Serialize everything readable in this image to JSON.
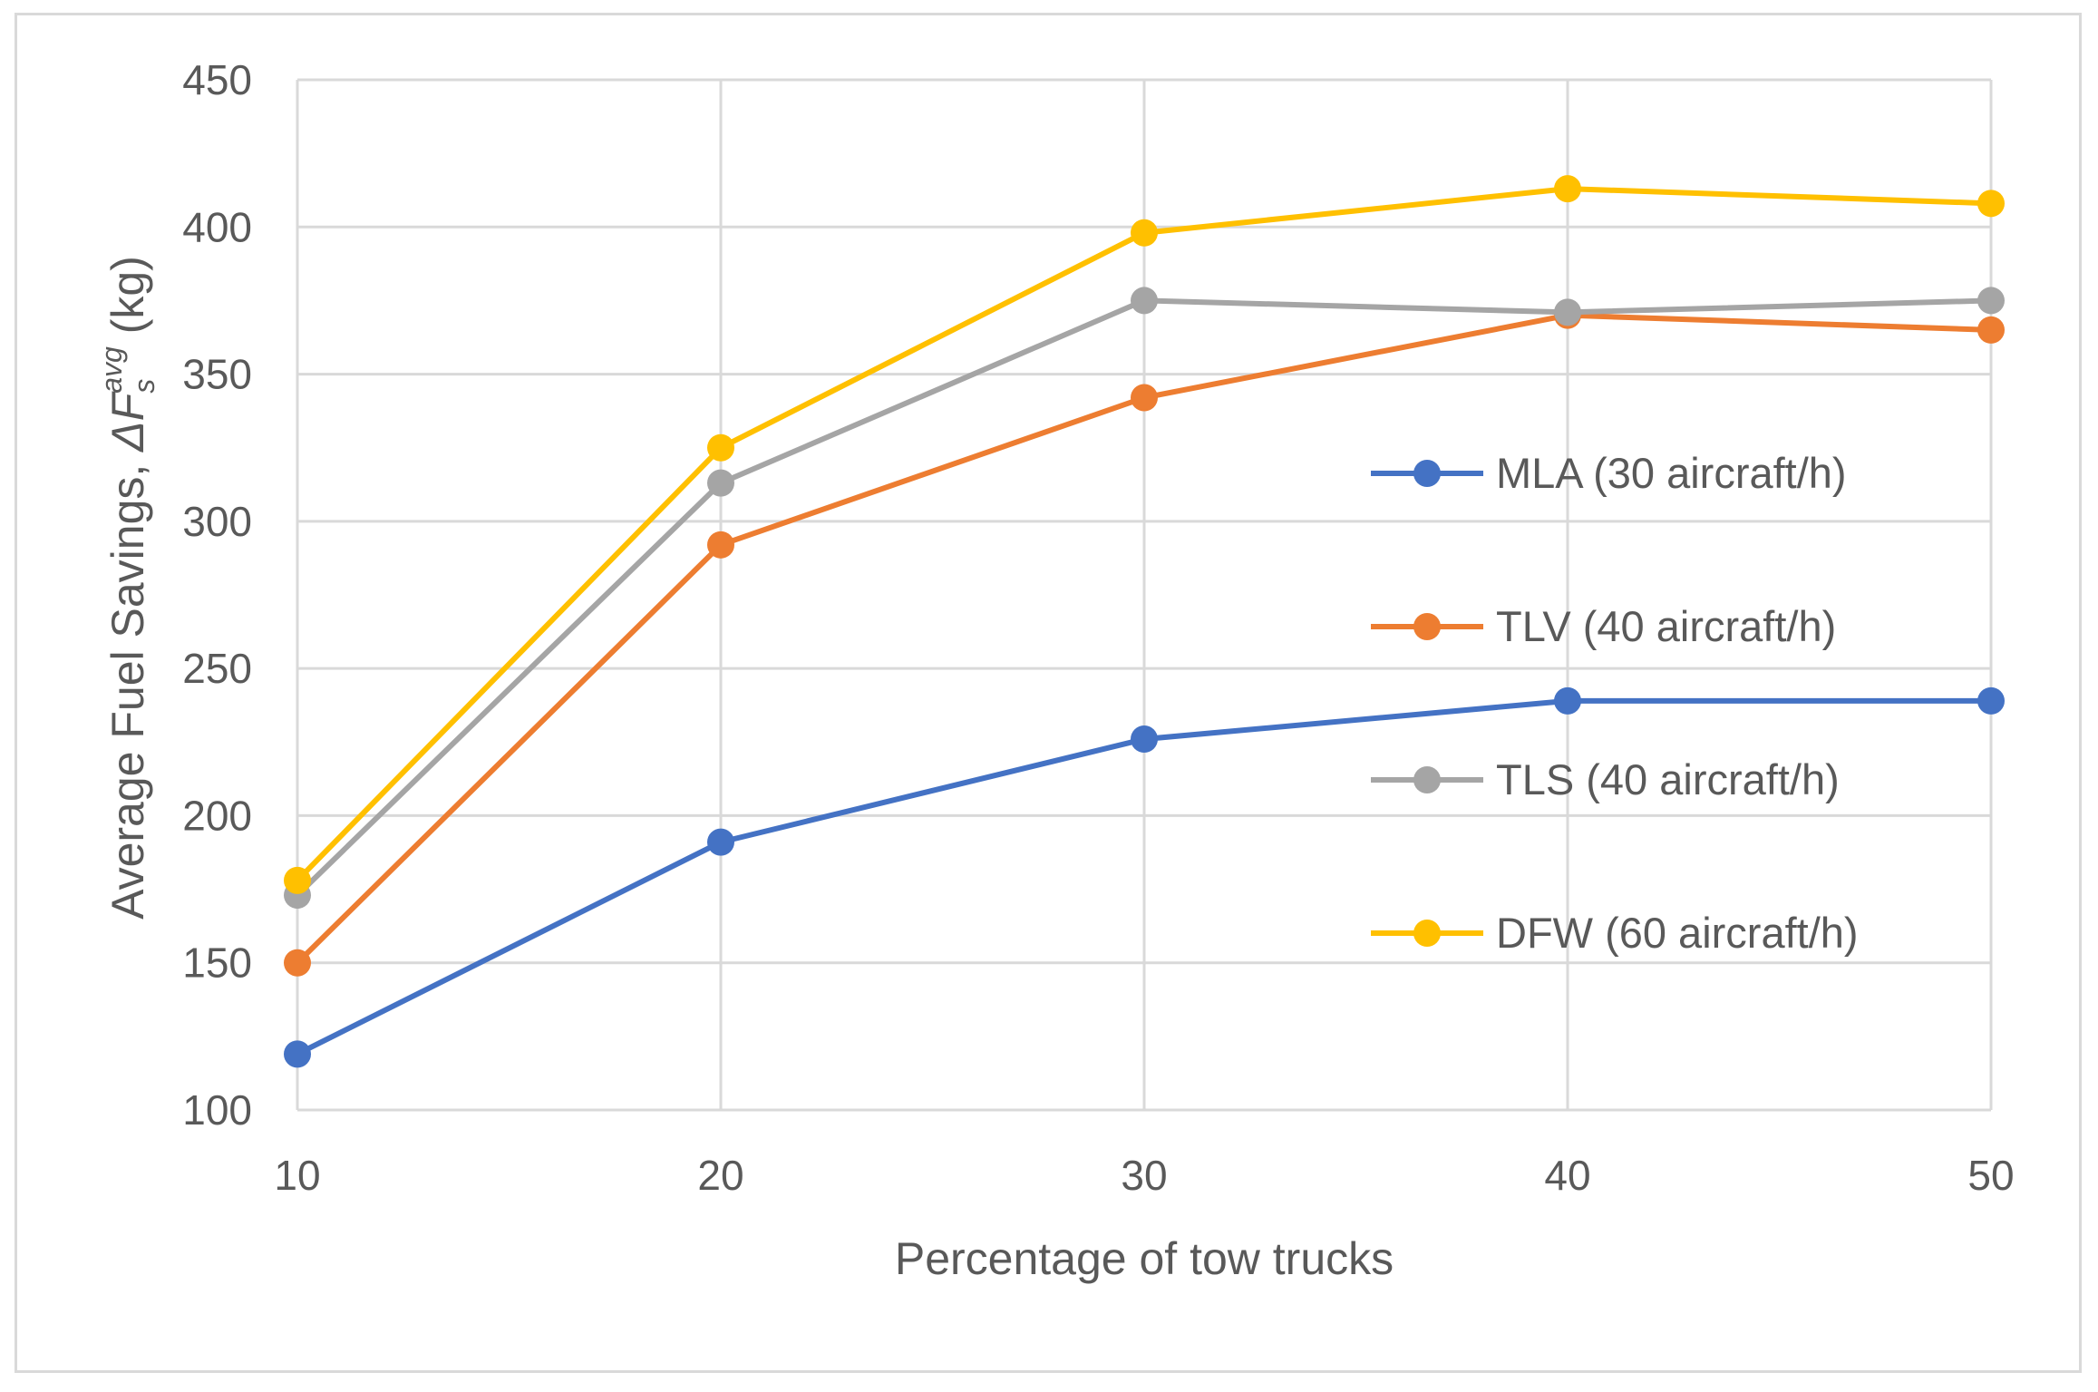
{
  "chart_data": {
    "type": "line",
    "title": "",
    "xlabel": "Percentage of tow trucks",
    "ylabel": {
      "prefix": "Average  Fuel Savings, ",
      "symbol": "ΔF",
      "subscript": "s",
      "superscript": "avg",
      "suffix": " (kg)"
    },
    "x": [
      10,
      20,
      30,
      40,
      50
    ],
    "xlim": [
      10,
      50
    ],
    "ylim": [
      100,
      450
    ],
    "yticks": [
      100,
      150,
      200,
      250,
      300,
      350,
      400,
      450
    ],
    "grid": true,
    "legend_position": "right",
    "series": [
      {
        "name": "MLA (30 aircraft/h)",
        "color": "#4472c4",
        "values": [
          119,
          191,
          226,
          239,
          239
        ]
      },
      {
        "name": "TLV (40 aircraft/h)",
        "color": "#ed7d31",
        "values": [
          150,
          292,
          342,
          370,
          365
        ]
      },
      {
        "name": "TLS (40 aircraft/h)",
        "color": "#a5a5a5",
        "values": [
          173,
          313,
          375,
          371,
          375
        ]
      },
      {
        "name": "DFW (60 aircraft/h)",
        "color": "#ffc000",
        "values": [
          178,
          325,
          398,
          413,
          408
        ]
      }
    ]
  }
}
